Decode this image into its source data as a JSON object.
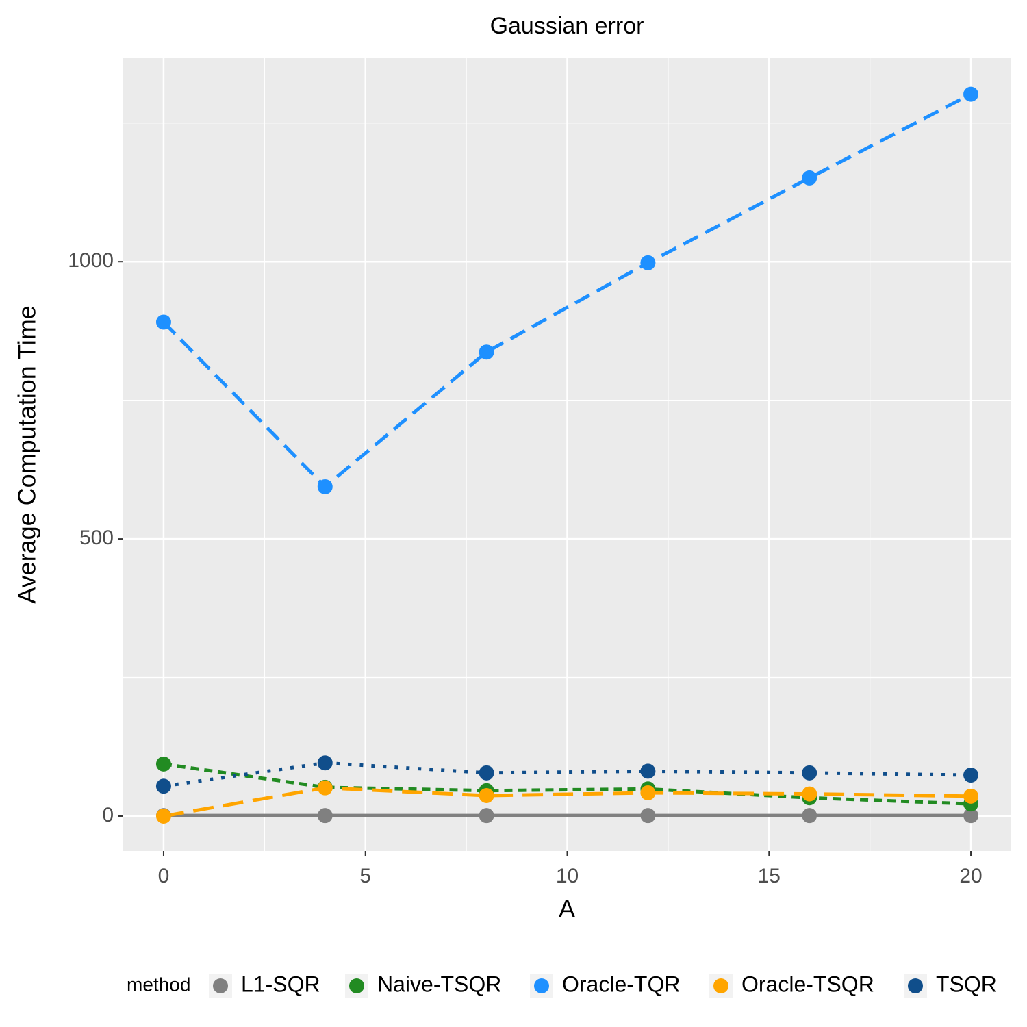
{
  "chart_data": {
    "type": "line",
    "title": "Gaussian error",
    "xlabel": "A",
    "ylabel": "Average Computation Time",
    "legend_title": "method",
    "legend": "bottom",
    "grid": true,
    "x": [
      0,
      4,
      8,
      12,
      16,
      20
    ],
    "xlim": [
      -1,
      21
    ],
    "xticks": [
      0,
      5,
      10,
      15,
      20
    ],
    "ylim": [
      -63,
      1367
    ],
    "yticks": [
      0,
      500,
      1000
    ],
    "series": [
      {
        "name": "L1-SQR",
        "color": "#808080",
        "linetype": "solid",
        "values": [
          1,
          1,
          1,
          1,
          1,
          1
        ]
      },
      {
        "name": "Naive-TSQR",
        "color": "#228B22",
        "linetype": "dashed",
        "values": [
          94,
          52,
          46,
          49,
          33,
          22
        ]
      },
      {
        "name": "Oracle-TQR",
        "color": "#1E90FF",
        "linetype": "longdash",
        "values": [
          891,
          594,
          837,
          998,
          1151,
          1302
        ]
      },
      {
        "name": "Oracle-TSQR",
        "color": "#FFA500",
        "linetype": "twodash",
        "values": [
          0,
          51,
          37,
          42,
          40,
          36
        ]
      },
      {
        "name": "TSQR",
        "color": "#104E8B",
        "linetype": "dotted",
        "values": [
          54,
          96,
          78,
          81,
          78,
          74
        ]
      }
    ]
  }
}
